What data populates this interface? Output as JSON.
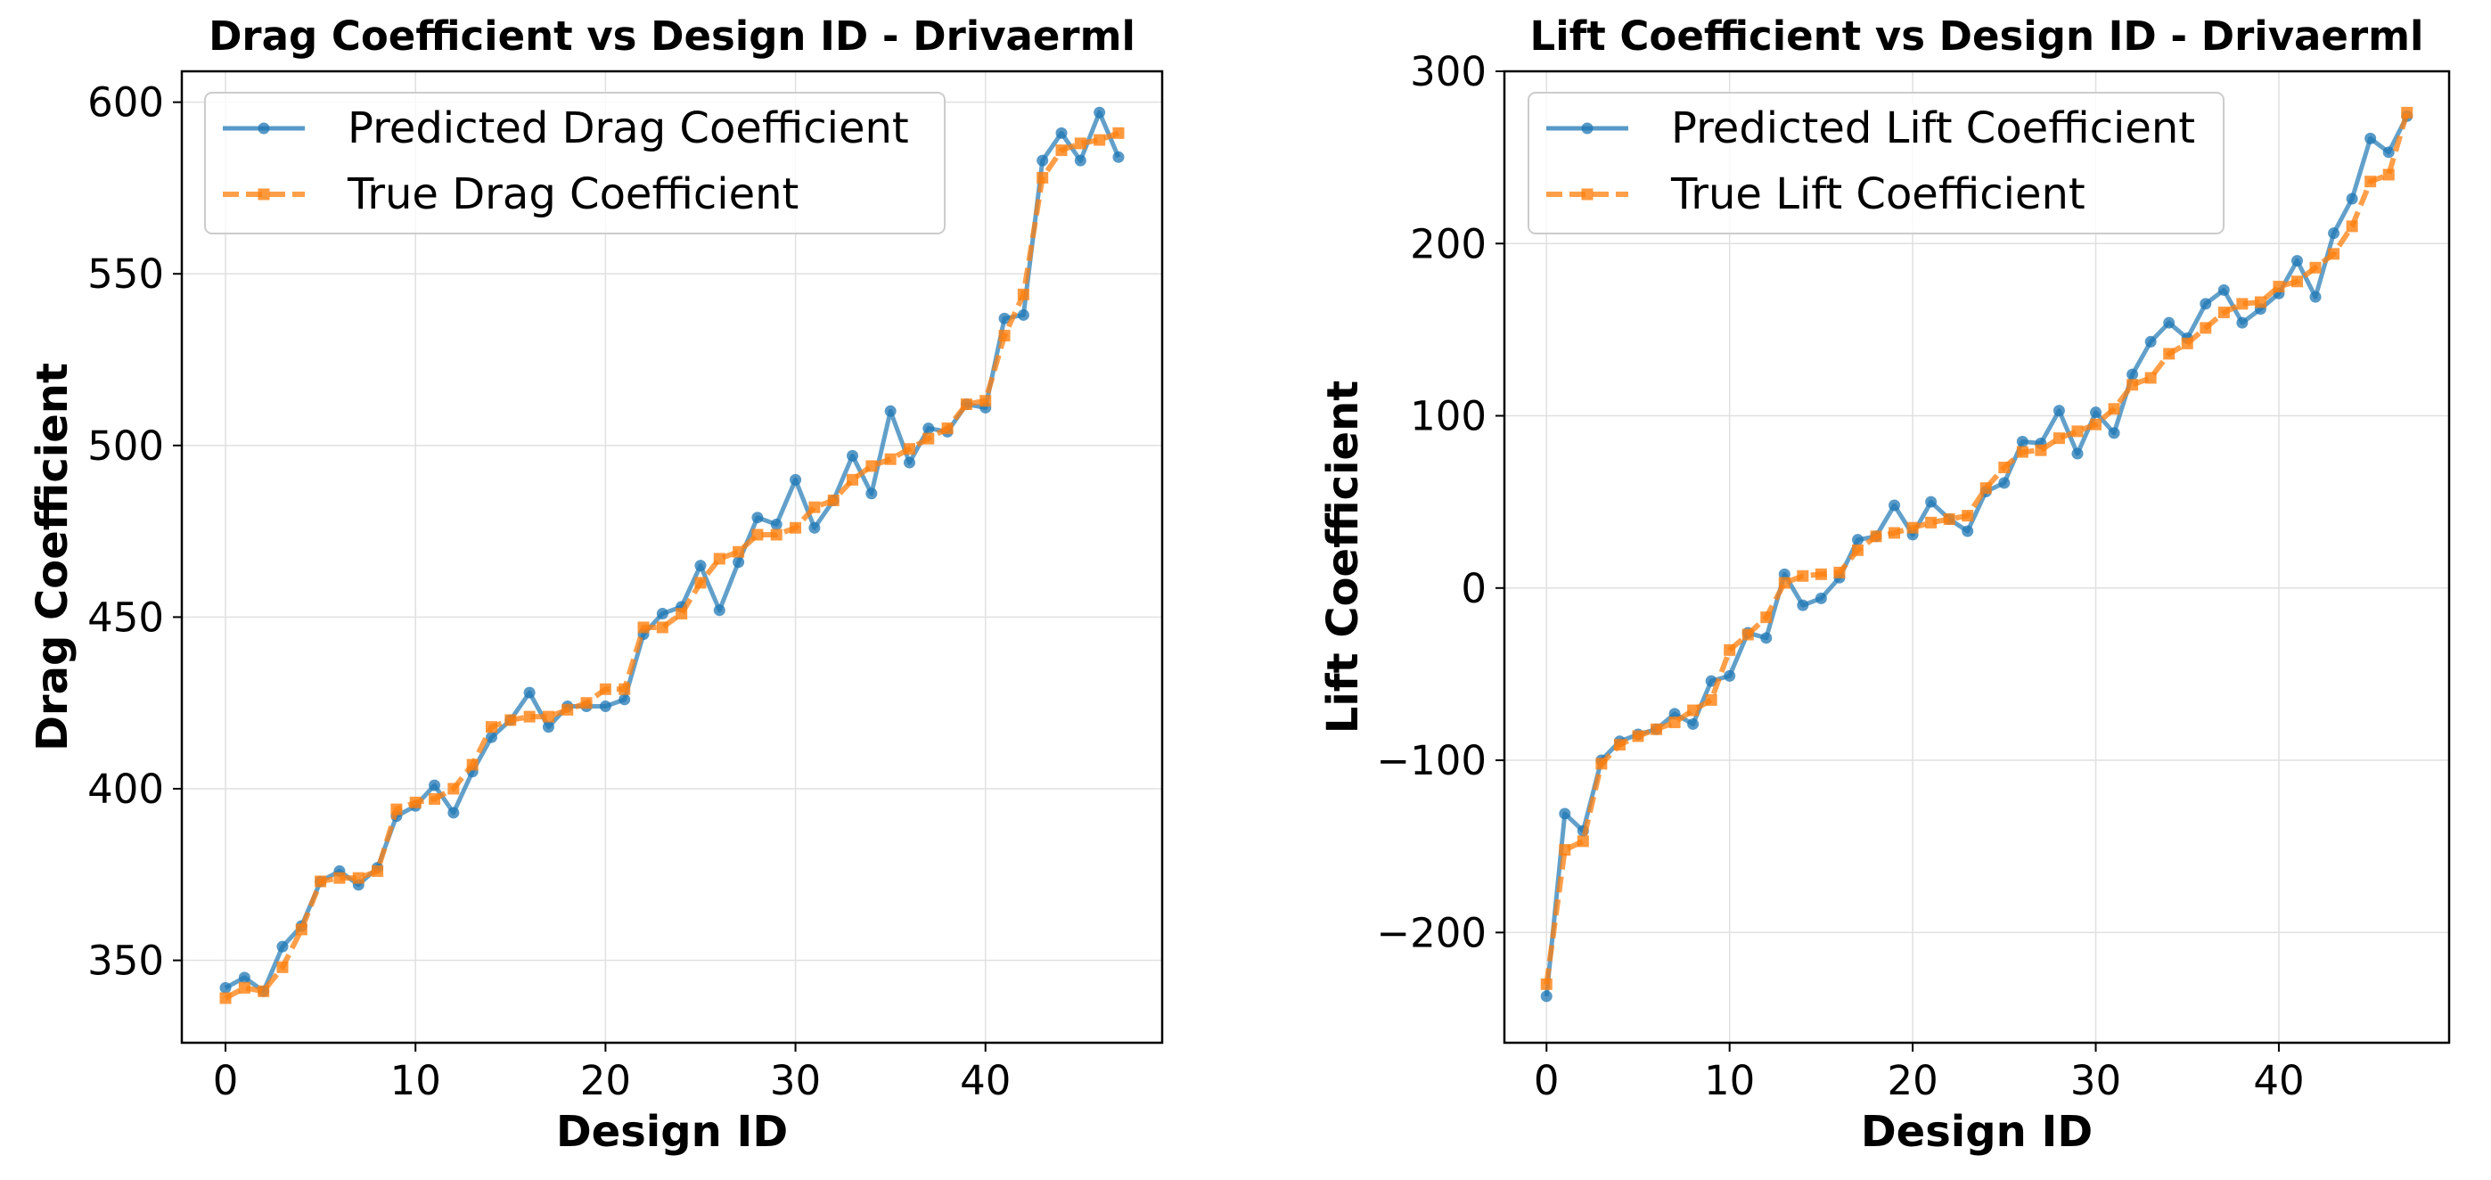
{
  "colors": {
    "predicted": "#1f77b4",
    "true": "#ff7f0e",
    "grid": "#e0e0e0",
    "frame": "#000000"
  },
  "chart_data": [
    {
      "type": "line",
      "title": "Drag Coefficient vs Design ID - Drivaerml",
      "xlabel": "Design ID",
      "ylabel": "Drag Coefficient",
      "xlim": [
        -2.3,
        49.3
      ],
      "ylim": [
        326,
        609
      ],
      "xticks": [
        0,
        10,
        20,
        30,
        40
      ],
      "yticks": [
        350,
        400,
        450,
        500,
        550,
        600
      ],
      "grid": true,
      "legend_position": "top-left",
      "x": [
        0,
        1,
        2,
        3,
        4,
        5,
        6,
        7,
        8,
        9,
        10,
        11,
        12,
        13,
        14,
        15,
        16,
        17,
        18,
        19,
        20,
        21,
        22,
        23,
        24,
        25,
        26,
        27,
        28,
        29,
        30,
        31,
        32,
        33,
        34,
        35,
        36,
        37,
        38,
        39,
        40,
        41,
        42,
        43,
        44,
        45,
        46,
        47
      ],
      "series": [
        {
          "name": "Predicted Drag Coefficient",
          "marker": "circle",
          "linestyle": "solid",
          "values": [
            342,
            345,
            341,
            354,
            360,
            373,
            376,
            372,
            377,
            392,
            395,
            401,
            393,
            405,
            415,
            420,
            428,
            418,
            424,
            424,
            424,
            426,
            445,
            451,
            453,
            465,
            452,
            466,
            479,
            477,
            490,
            476,
            484,
            497,
            486,
            510,
            495,
            505,
            504,
            512,
            511,
            537,
            538,
            583,
            591,
            583,
            597,
            584
          ]
        },
        {
          "name": "True Drag Coefficient",
          "marker": "square",
          "linestyle": "dashed",
          "values": [
            339,
            342,
            341,
            348,
            359,
            373,
            374,
            374,
            376,
            394,
            396,
            397,
            400,
            407,
            418,
            420,
            421,
            421,
            423,
            425,
            429,
            429,
            447,
            447,
            451,
            460,
            467,
            469,
            474,
            474,
            476,
            482,
            484,
            490,
            494,
            496,
            499,
            502,
            505,
            512,
            513,
            532,
            544,
            578,
            586,
            588,
            589,
            591
          ]
        }
      ]
    },
    {
      "type": "line",
      "title": "Lift Coefficient vs Design ID - Drivaerml",
      "xlabel": "Design ID",
      "ylabel": "Lift Coefficient",
      "xlim": [
        -2.3,
        49.3
      ],
      "ylim": [
        -264,
        300
      ],
      "xticks": [
        0,
        10,
        20,
        30,
        40
      ],
      "yticks": [
        -200,
        -100,
        0,
        100,
        200,
        300
      ],
      "ytick_labels": [
        "−200",
        "−100",
        "0",
        "100",
        "200",
        "300"
      ],
      "grid": true,
      "legend_position": "top-left",
      "x": [
        0,
        1,
        2,
        3,
        4,
        5,
        6,
        7,
        8,
        9,
        10,
        11,
        12,
        13,
        14,
        15,
        16,
        17,
        18,
        19,
        20,
        21,
        22,
        23,
        24,
        25,
        26,
        27,
        28,
        29,
        30,
        31,
        32,
        33,
        34,
        35,
        36,
        37,
        38,
        39,
        40,
        41,
        42,
        43,
        44,
        45,
        46,
        47
      ],
      "series": [
        {
          "name": "Predicted Lift Coefficient",
          "marker": "circle",
          "linestyle": "solid",
          "values": [
            -237,
            -131,
            -141,
            -100,
            -89,
            -85,
            -82,
            -73,
            -79,
            -54,
            -51,
            -26,
            -29,
            8,
            -10,
            -6,
            6,
            28,
            30,
            48,
            31,
            50,
            40,
            33,
            56,
            61,
            85,
            84,
            103,
            78,
            102,
            90,
            124,
            143,
            154,
            145,
            165,
            173,
            154,
            162,
            171,
            190,
            169,
            206,
            226,
            261,
            253,
            274
          ]
        },
        {
          "name": "True Lift Coefficient",
          "marker": "square",
          "linestyle": "dashed",
          "values": [
            -230,
            -152,
            -147,
            -102,
            -91,
            -86,
            -82,
            -78,
            -71,
            -65,
            -36,
            -27,
            -17,
            3,
            7,
            8,
            9,
            22,
            30,
            32,
            35,
            38,
            40,
            42,
            58,
            70,
            79,
            80,
            87,
            91,
            95,
            104,
            118,
            122,
            136,
            142,
            151,
            160,
            165,
            166,
            175,
            178,
            186,
            194,
            210,
            236,
            240,
            276
          ]
        }
      ]
    }
  ]
}
